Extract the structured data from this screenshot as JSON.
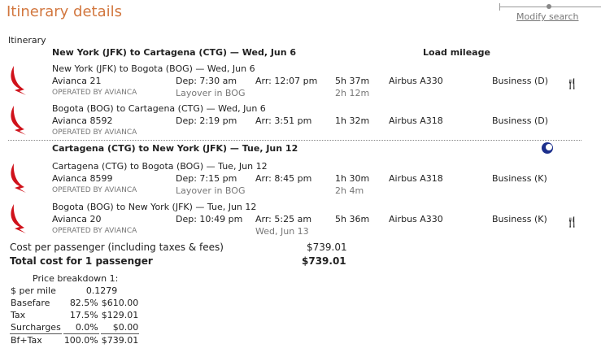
{
  "header": {
    "title": "Itinerary details",
    "modify_search": "Modify search"
  },
  "itinerary_label": "Itinerary",
  "load_mileage": "Load mileage",
  "brand_color": "#d0121b",
  "legs": [
    {
      "title": "New York (JFK) to Cartagena (CTG) — Wed, Jun 6",
      "segments": [
        {
          "route": "New York (JFK) to Bogota (BOG) — Wed, Jun 6",
          "flight": "Avianca 21",
          "operated": "OPERATED BY AVIANCA",
          "dep": "Dep: 7:30 am",
          "arr": "Arr: 12:07 pm",
          "duration": "5h 37m",
          "aircraft": "Airbus A330",
          "cabin": "Business (D)",
          "sub_dep": "Layover in BOG",
          "sub_arr": "",
          "sub_dur": "2h 12m",
          "icon": "meal-icon"
        },
        {
          "route": "Bogota (BOG) to Cartagena (CTG) — Wed, Jun 6",
          "flight": "Avianca 8592",
          "operated": "OPERATED BY AVIANCA",
          "dep": "Dep: 2:19 pm",
          "arr": "Arr: 3:51 pm",
          "duration": "1h 32m",
          "aircraft": "Airbus A318",
          "cabin": "Business (D)",
          "sub_dep": "",
          "sub_arr": "",
          "sub_dur": "",
          "icon": ""
        }
      ]
    },
    {
      "title": "Cartagena (CTG) to New York (JFK) — Tue, Jun 12",
      "icon": "overnight-moon-icon",
      "segments": [
        {
          "route": "Cartagena (CTG) to Bogota (BOG) — Tue, Jun 12",
          "flight": "Avianca 8599",
          "operated": "OPERATED BY AVIANCA",
          "dep": "Dep: 7:15 pm",
          "arr": "Arr: 8:45 pm",
          "duration": "1h 30m",
          "aircraft": "Airbus A318",
          "cabin": "Business (K)",
          "sub_dep": "Layover in BOG",
          "sub_arr": "",
          "sub_dur": "2h 4m",
          "icon": ""
        },
        {
          "route": "Bogota (BOG) to New York (JFK) — Tue, Jun 12",
          "flight": "Avianca 20",
          "operated": "OPERATED BY AVIANCA",
          "dep": "Dep: 10:49 pm",
          "arr": "Arr: 5:25 am",
          "duration": "5h 36m",
          "aircraft": "Airbus A330",
          "cabin": "Business (K)",
          "sub_dep": "",
          "sub_arr": "Wed, Jun 13",
          "sub_dur": "",
          "icon": "meal-icon"
        }
      ]
    }
  ],
  "cost": {
    "per_passenger_label": "Cost per passenger (including taxes & fees)",
    "per_passenger": "$739.01",
    "total_label": "Total cost for 1 passenger",
    "total": "$739.01"
  },
  "breakdown": {
    "title": "Price breakdown 1:",
    "per_mile_label": "$ per mile",
    "per_mile": "0.1279",
    "rows": [
      {
        "label": "Basefare",
        "pct": "82.5%",
        "amount": "$610.00"
      },
      {
        "label": "Tax",
        "pct": "17.5%",
        "amount": "$129.01"
      },
      {
        "label": "Surcharges",
        "pct": "0.0%",
        "amount": "$0.00"
      },
      {
        "label": "Bf+Tax",
        "pct": "100.0%",
        "amount": "$739.01"
      }
    ]
  }
}
